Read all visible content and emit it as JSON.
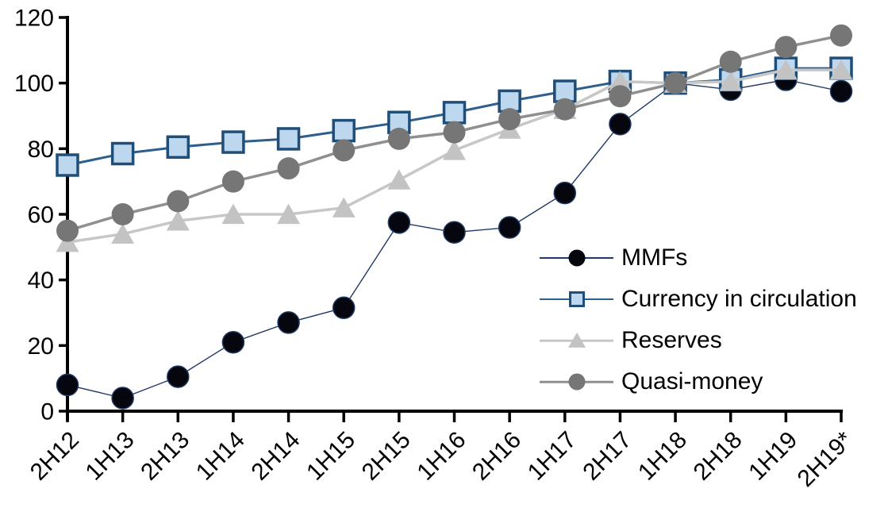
{
  "chart_data": {
    "type": "line",
    "title": "",
    "xlabel": "",
    "ylabel": "",
    "ylim": [
      0,
      120
    ],
    "yticks": [
      0,
      20,
      40,
      60,
      80,
      100,
      120
    ],
    "grid": false,
    "legend_position": "middle-right",
    "categories": [
      "2H12",
      "1H13",
      "2H13",
      "1H14",
      "2H14",
      "1H15",
      "2H15",
      "1H16",
      "2H16",
      "1H17",
      "2H17",
      "1H18",
      "2H18",
      "1H19",
      "2H19*"
    ],
    "series": [
      {
        "name": "MMFs",
        "marker": "circle",
        "marker_color": "#06060e",
        "marker_stroke": "#1F3864",
        "marker_stroke_width": 1.5,
        "line_color": "#1F3864",
        "line_width": 1.4,
        "marker_size": 27,
        "values": [
          8,
          4,
          10.5,
          21,
          27,
          31.5,
          57.5,
          54.5,
          56,
          66.5,
          87.5,
          100,
          98,
          101,
          97.5
        ]
      },
      {
        "name": "Currency in circulation",
        "marker": "square",
        "marker_color": "#BDD7EE",
        "marker_stroke": "#1F4E79",
        "marker_stroke_width": 3.5,
        "line_color": "#2E5F8C",
        "line_width": 3,
        "marker_size": 26,
        "values": [
          75,
          78.5,
          80.5,
          82,
          83,
          85.5,
          88,
          91,
          94.5,
          97.5,
          100.5,
          100,
          101,
          104.5,
          104.5
        ]
      },
      {
        "name": "Reserves",
        "marker": "triangle",
        "marker_color": "#C3C3C3",
        "line_color": "#C7C7C7",
        "line_width": 3.5,
        "marker_size": 29,
        "values": [
          51.5,
          54,
          58,
          60,
          60,
          62,
          70.5,
          79.5,
          86,
          92,
          100.5,
          100,
          100.5,
          104,
          104
        ]
      },
      {
        "name": "Quasi-money",
        "marker": "circle",
        "marker_color": "#767676",
        "marker_stroke": "#767676",
        "marker_stroke_width": 0,
        "line_color": "#8F8F8F",
        "line_width": 3.5,
        "marker_size": 28,
        "values": [
          55,
          60,
          64,
          70,
          74,
          79.5,
          83,
          85,
          89,
          92,
          96,
          100,
          106.5,
          111,
          114.5
        ]
      }
    ],
    "axis_color": "#000000",
    "tick_label_font_size": 30,
    "x_label_rotation": -45
  }
}
